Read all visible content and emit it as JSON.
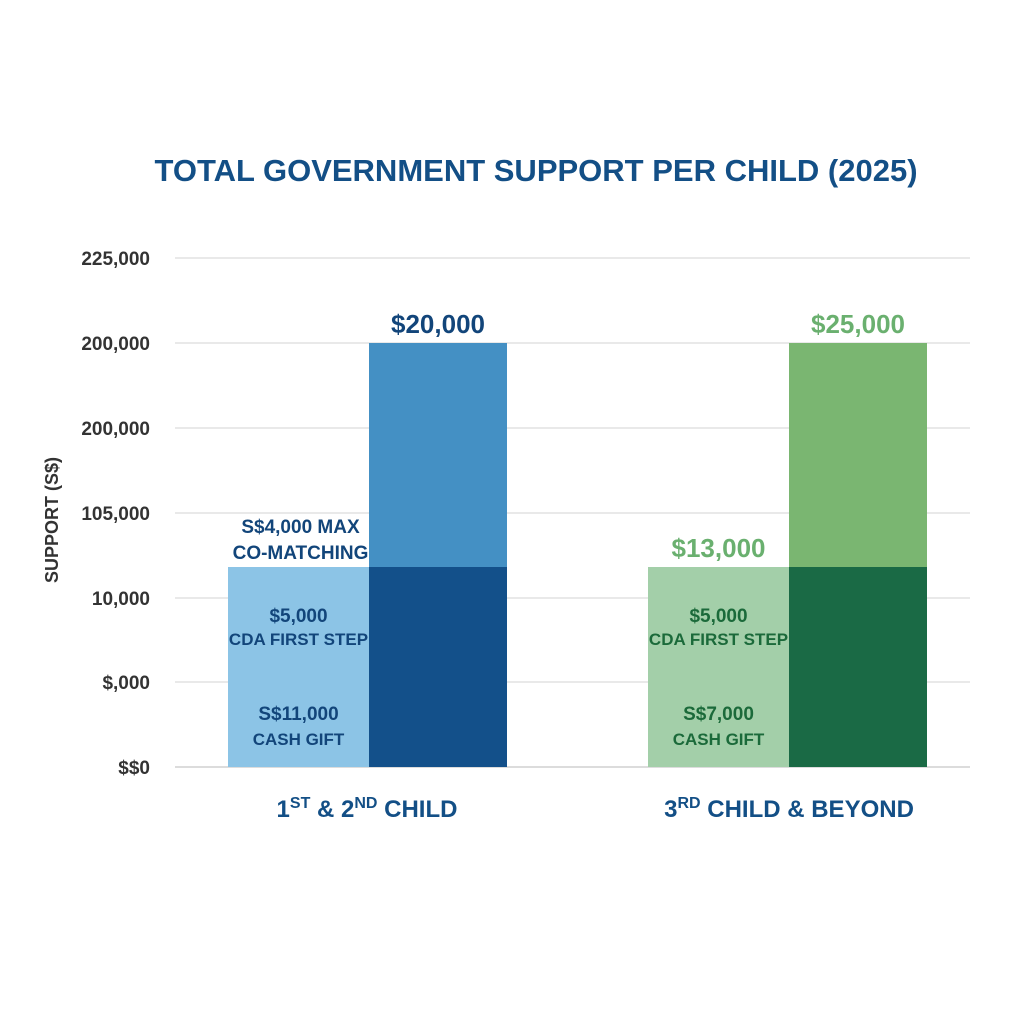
{
  "chart_data": {
    "type": "bar",
    "title": "TOTAL GOVERNMENT SUPPORT PER CHILD (2025)",
    "ylabel": "SUPPORT (S$)",
    "y_tick_labels": [
      "$$0",
      "$,000",
      "10,000",
      "105,000",
      "200,000",
      "200,000",
      "225,000"
    ],
    "ylim": [
      0,
      225000
    ],
    "grid": true,
    "categories": [
      {
        "base": "1",
        "sup1": "ST",
        "mid": " & 2",
        "sup2": "ND",
        "end": " CHILD"
      },
      {
        "base": "3",
        "sup1": "RD",
        "mid": " CHILD & BEYOND",
        "sup2": "",
        "end": ""
      }
    ],
    "groups": [
      {
        "left_stack": [
          {
            "value": "S$11,000",
            "label": "CASH GIFT",
            "color": "#8cc4e6"
          },
          {
            "value": "$5,000",
            "label": "CDA FIRST STEP",
            "color": "#8cc4e6"
          }
        ],
        "left_top_label": {
          "line1": "S$4,000 MAX",
          "line2": "CO-MATCHING",
          "color": "#12457a"
        },
        "right_top_label": "$20,000",
        "colors": {
          "light": "#8cc4e6",
          "mid": "#4490c4",
          "dark": "#13508a",
          "text": "#12457a",
          "top_text": "#12457a"
        }
      },
      {
        "left_stack": [
          {
            "value": "S$7,000",
            "label": "CASH GIFT",
            "color": "#a3cfa9"
          },
          {
            "value": "$5,000",
            "label": "CDA FIRST STEP",
            "color": "#a3cfa9"
          }
        ],
        "left_top_label": {
          "line1": "$13,000",
          "line2": "",
          "color": "#6ab06f"
        },
        "right_top_label": "$25,000",
        "colors": {
          "light": "#a3cfa9",
          "mid": "#7ab671",
          "dark": "#1a6a45",
          "text": "#1b6a3a",
          "top_text": "#6ab06f"
        }
      }
    ],
    "colors": {
      "title": "#134f86",
      "tick": "#333333",
      "grid": "#dcdcdc",
      "category": "#134f86"
    }
  }
}
